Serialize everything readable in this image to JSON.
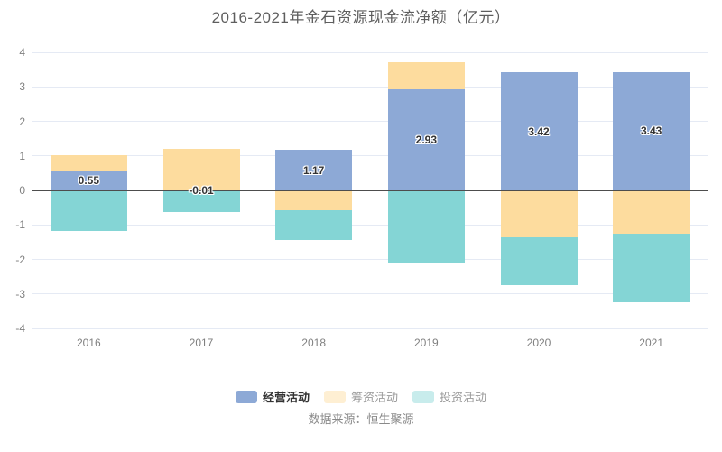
{
  "source": "数据来源：恒生聚源",
  "legend": [
    {
      "label": "经营活动",
      "color": "#8DA9D6",
      "emphasis": true
    },
    {
      "label": "筹资活动",
      "color": "#FDDC9E",
      "emphasis": false
    },
    {
      "label": "投资活动",
      "color": "#84D5D5",
      "emphasis": false
    }
  ],
  "colors": {
    "operating": "#8DA9D6",
    "financing": "#FDDC9E",
    "investing": "#84D5D5",
    "grid": "#E5EAF4",
    "zero_line": "#4D4D4D",
    "axis_text": "#7F7F7F",
    "title_text": "#5E5E5E",
    "bar_label_text": "#333333"
  },
  "chart_data": {
    "type": "bar",
    "stacked": true,
    "title": "2016-2021年金石资源现金流净额（亿元）",
    "categories": [
      "2016",
      "2017",
      "2018",
      "2019",
      "2020",
      "2021"
    ],
    "series": [
      {
        "name": "经营活动",
        "color": "#8DA9D6",
        "values": [
          0.55,
          -0.01,
          1.17,
          2.93,
          3.42,
          3.43
        ],
        "labels": [
          "0.55",
          "-0.01",
          "1.17",
          "2.93",
          "3.42",
          "3.43"
        ],
        "show_labels": true
      },
      {
        "name": "筹资活动",
        "color": "#FDDC9E",
        "values": [
          0.47,
          1.2,
          -0.58,
          0.78,
          -1.35,
          -1.26
        ],
        "show_labels": false
      },
      {
        "name": "投资活动",
        "color": "#84D5D5",
        "values": [
          -1.18,
          -0.62,
          -0.87,
          -2.1,
          -1.4,
          -1.98
        ],
        "show_labels": false
      }
    ],
    "xlabel": "",
    "ylabel": "",
    "ylim": [
      -4,
      4
    ],
    "yticks": [
      4,
      3,
      2,
      1,
      0,
      -1,
      -2,
      -3,
      -4
    ],
    "grid": true,
    "legend_position": "bottom"
  }
}
